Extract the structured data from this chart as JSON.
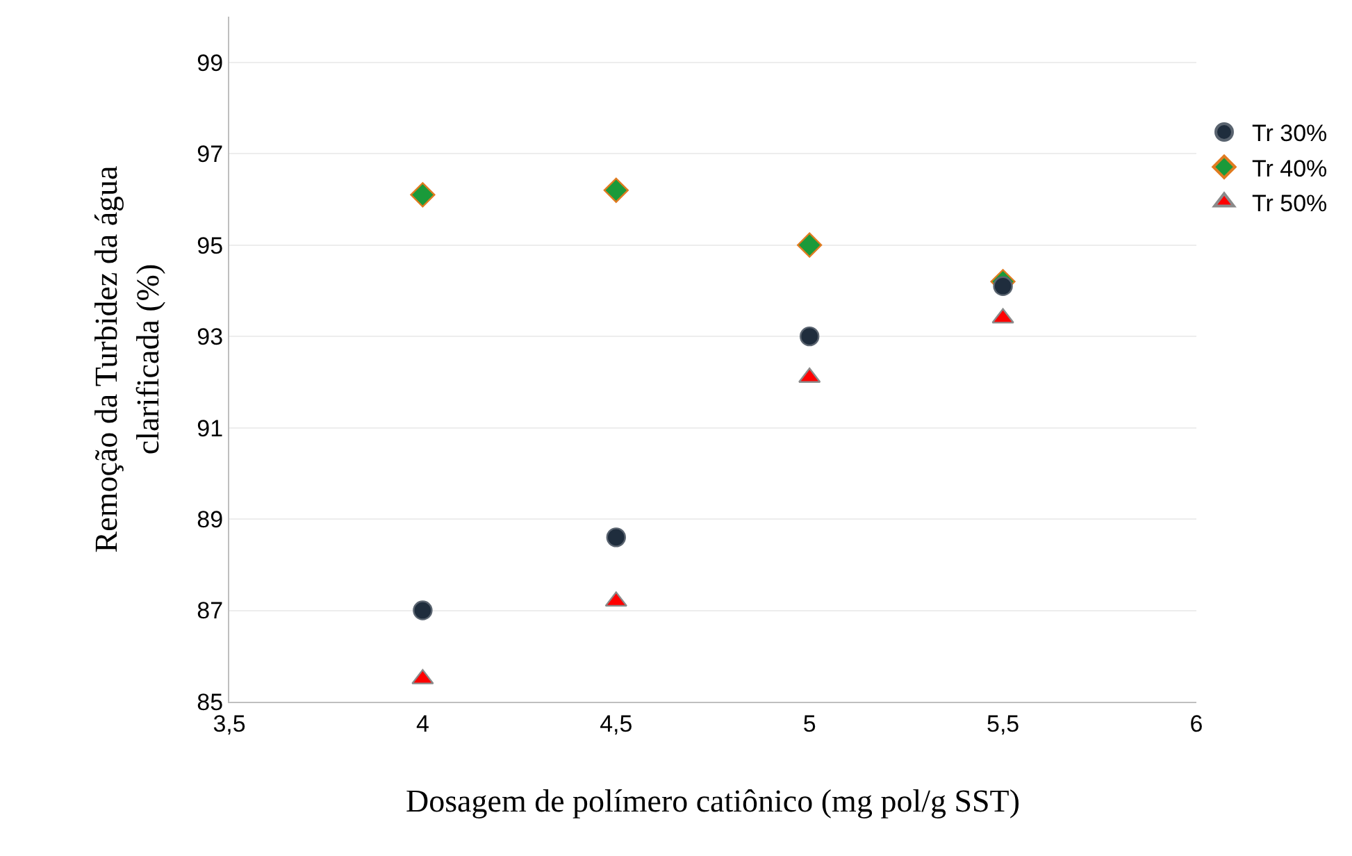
{
  "chart_data": {
    "type": "scatter",
    "xlabel": "Dosagem de polímero catiônico (mg pol/g SST)",
    "ylabel": "Remoção da Turbidez da água\nclarificada (%)",
    "x": [
      4,
      4.5,
      5,
      5.5
    ],
    "series": [
      {
        "name": "Tr 30%",
        "color": "#1f2d3d",
        "marker": "circle",
        "values": [
          87.0,
          88.6,
          93.0,
          94.1
        ]
      },
      {
        "name": "Tr 40%",
        "color": "#1a9a3a",
        "marker": "diamond",
        "values": [
          96.1,
          96.2,
          95.0,
          94.2
        ]
      },
      {
        "name": "Tr 50%",
        "color": "#ff0000",
        "marker": "triangle",
        "values": [
          85.5,
          87.2,
          92.1,
          93.4
        ]
      }
    ],
    "xlim": [
      3.5,
      6
    ],
    "xticks": [
      {
        "value": 3.5,
        "label": "3,5"
      },
      4,
      {
        "value": 4.5,
        "label": "4,5"
      },
      5,
      {
        "value": 5.5,
        "label": "5,5"
      },
      6
    ],
    "ylim": [
      85,
      100
    ],
    "yticks": [
      85,
      87,
      89,
      91,
      93,
      95,
      97,
      99
    ],
    "grid": "y",
    "legend": "right"
  }
}
